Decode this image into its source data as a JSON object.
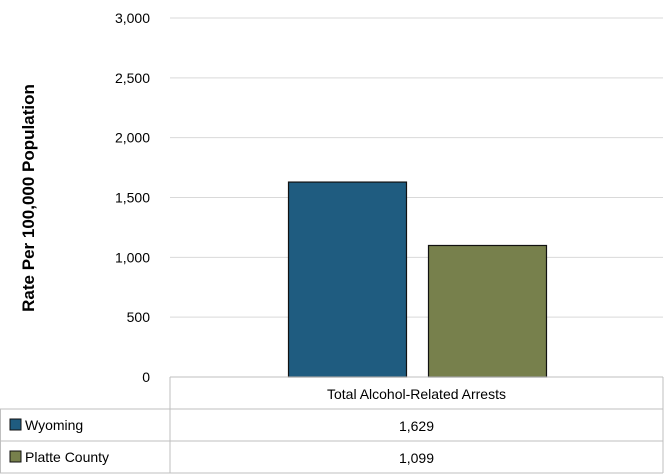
{
  "chart_data": {
    "type": "bar",
    "ylabel": "Rate Per 100,000 Population",
    "categories": [
      "Total Alcohol-Related Arrests"
    ],
    "series": [
      {
        "name": "Wyoming",
        "values": [
          1629
        ],
        "color": "#1f5c80"
      },
      {
        "name": "Platte County",
        "values": [
          1099
        ],
        "color": "#77804c"
      }
    ],
    "ylim": [
      0,
      3000
    ],
    "yticks": [
      0,
      500,
      1000,
      1500,
      2000,
      2500,
      3000
    ],
    "ytick_labels": [
      "0",
      "500",
      "1,000",
      "1,500",
      "2,000",
      "2,500",
      "3,000"
    ],
    "data_table": [
      {
        "label": "Wyoming",
        "value": "1,629"
      },
      {
        "label": "Platte County",
        "value": "1,099"
      }
    ],
    "grid": true,
    "legend": "data-table"
  }
}
